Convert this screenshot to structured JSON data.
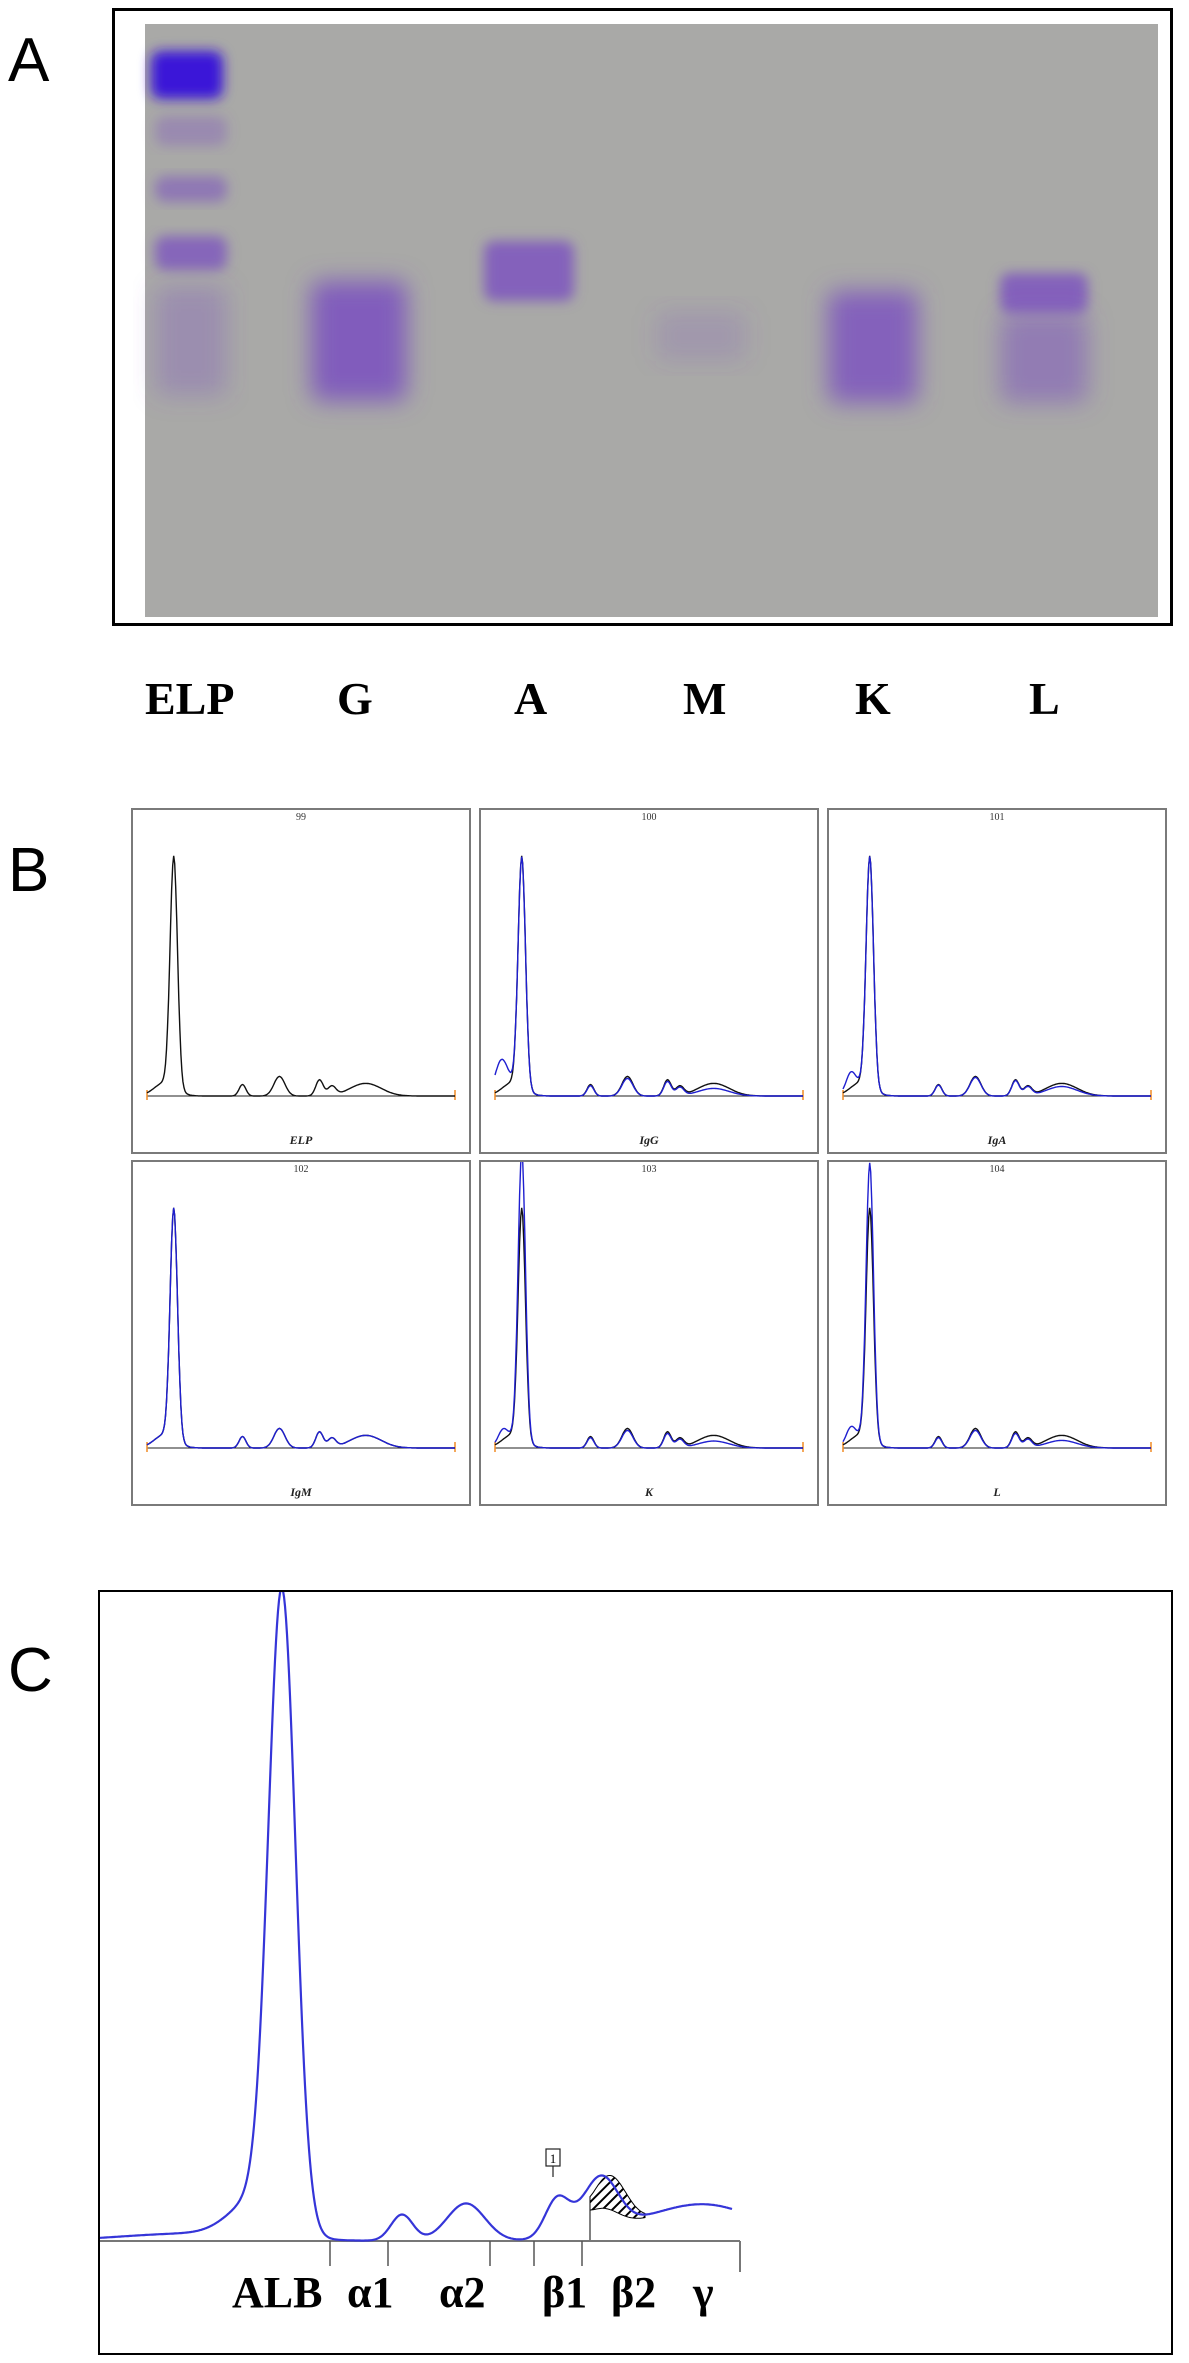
{
  "panels": {
    "a_letter": "A",
    "b_letter": "B",
    "c_letter": "C"
  },
  "gel": {
    "lanes": [
      "ELP",
      "G",
      "A",
      "M",
      "K",
      "L"
    ],
    "background_color": "#a9a9a7",
    "stain_color": "#7a4fc0",
    "albumin_color": "#3a16d8"
  },
  "densitometry": {
    "scans": [
      {
        "number": "99",
        "label": "ELP"
      },
      {
        "number": "100",
        "label": "IgG"
      },
      {
        "number": "101",
        "label": "IgA"
      },
      {
        "number": "102",
        "label": "IgM"
      },
      {
        "number": "103",
        "label": "K"
      },
      {
        "number": "104",
        "label": "L"
      }
    ],
    "trace_colors": {
      "elp": "#111111",
      "fraction": "#1f1fd0",
      "marker": "#f08a24"
    }
  },
  "chart_data": {
    "type": "line",
    "fractions": [
      "ALB",
      "α1",
      "α2",
      "β1",
      "β2",
      "γ"
    ],
    "annotation": "1",
    "line_color": "#3535d8"
  }
}
